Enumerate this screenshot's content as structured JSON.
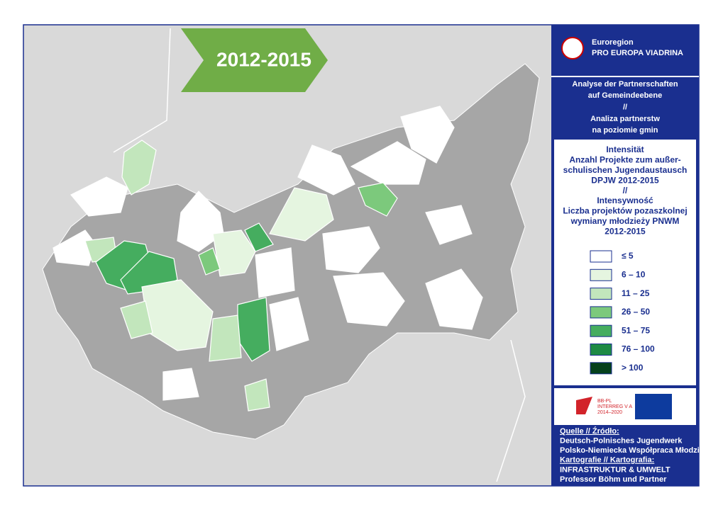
{
  "banner": "2012-2015",
  "header": {
    "line1": "Euroregion",
    "line2": "PRO EUROPA VIADRINA"
  },
  "subtitle": [
    "Analyse der Partnerschaften",
    "auf Gemeindeebene",
    "//",
    "Analiza partnerstw",
    "na poziomie gmin"
  ],
  "legend": {
    "title": [
      "Intensität",
      "Anzahl Projekte zum außer-",
      "schulischen Jugendaustausch",
      "DPJW 2012-2015",
      "//",
      "Intensywność",
      "Liczba projektów pozaszkolnej",
      "wymiany młodzieży PNWM",
      "2012-2015"
    ],
    "classes": [
      {
        "label": "≤ 5",
        "color": "#ffffff"
      },
      {
        "label": "6 – 10",
        "color": "#e5f5e0"
      },
      {
        "label": "11 – 25",
        "color": "#c2e6bc"
      },
      {
        "label": "26 – 50",
        "color": "#7cc97c"
      },
      {
        "label": "51 – 75",
        "color": "#45ad5f"
      },
      {
        "label": "76 – 100",
        "color": "#1e8a44"
      },
      {
        "label": "> 100",
        "color": "#05401c"
      }
    ]
  },
  "logos": {
    "interreg": [
      "BB-PL",
      "INTERREG V A",
      "2014–2020"
    ]
  },
  "sources": {
    "source_heading": "Quelle // Źródło:",
    "source_lines": [
      "Deutsch-Polnisches Jugendwerk",
      "Polsko-Niemiecka Współpraca Młodzieży"
    ],
    "carto_heading": "Kartografie // Kartografia:",
    "carto_lines": [
      "INFRASTRUKTUR & UMWELT",
      "Professor Böhm und Partner"
    ]
  }
}
